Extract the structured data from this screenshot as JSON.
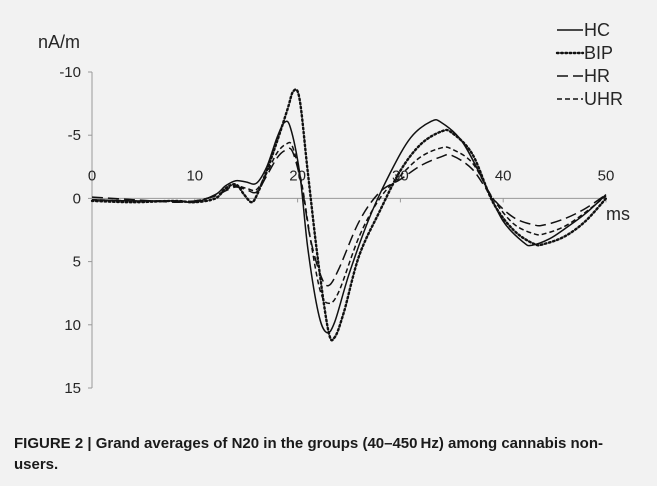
{
  "chart_data": {
    "type": "line",
    "y_unit_label": "nA/m",
    "x_unit_label": "ms",
    "xlim": [
      0,
      50
    ],
    "ylim": [
      15,
      -10
    ],
    "x_ticks": [
      "0",
      "10",
      "20",
      "30",
      "40",
      "50"
    ],
    "y_ticks": [
      "-10",
      "-5",
      "0",
      "5",
      "10",
      "15"
    ],
    "grid": false,
    "legend_position": "top-right",
    "series": [
      {
        "name": "HC",
        "style": "solid",
        "points": [
          [
            0,
            0.1
          ],
          [
            4,
            0.2
          ],
          [
            8,
            0.2
          ],
          [
            10,
            0.3
          ],
          [
            12,
            -0.3
          ],
          [
            13,
            -1.0
          ],
          [
            14,
            -1.4
          ],
          [
            15,
            -1.3
          ],
          [
            16,
            -1.2
          ],
          [
            17,
            -2.5
          ],
          [
            18,
            -4.8
          ],
          [
            18.7,
            -6.0
          ],
          [
            19.3,
            -5.6
          ],
          [
            20.2,
            -2.0
          ],
          [
            21,
            4.0
          ],
          [
            22,
            9.0
          ],
          [
            22.8,
            10.6
          ],
          [
            23.6,
            9.8
          ],
          [
            25,
            6.0
          ],
          [
            27,
            1.5
          ],
          [
            29,
            -2.0
          ],
          [
            31,
            -4.8
          ],
          [
            33,
            -6.1
          ],
          [
            34,
            -6.0
          ],
          [
            36,
            -4.5
          ],
          [
            38,
            -1.5
          ],
          [
            40,
            1.8
          ],
          [
            42,
            3.5
          ],
          [
            42.8,
            3.7
          ],
          [
            44.5,
            3.2
          ],
          [
            46,
            2.4
          ],
          [
            48,
            1.2
          ],
          [
            50,
            -0.3
          ]
        ]
      },
      {
        "name": "BIP",
        "style": "dotted",
        "points": [
          [
            0,
            0.2
          ],
          [
            4,
            0.3
          ],
          [
            8,
            0.2
          ],
          [
            10,
            0.3
          ],
          [
            12,
            0.0
          ],
          [
            13,
            -0.8
          ],
          [
            14,
            -1.1
          ],
          [
            14.8,
            -0.3
          ],
          [
            15.5,
            0.3
          ],
          [
            16,
            -0.2
          ],
          [
            17,
            -2.2
          ],
          [
            18,
            -4.5
          ],
          [
            19,
            -7.0
          ],
          [
            19.6,
            -8.5
          ],
          [
            20.2,
            -7.8
          ],
          [
            21,
            -2.0
          ],
          [
            22,
            5.0
          ],
          [
            23,
            10.5
          ],
          [
            23.6,
            11.0
          ],
          [
            24.5,
            9.0
          ],
          [
            26,
            4.5
          ],
          [
            28,
            1.0
          ],
          [
            30,
            -2.2
          ],
          [
            32,
            -4.3
          ],
          [
            34,
            -5.3
          ],
          [
            35,
            -5.2
          ],
          [
            37,
            -3.5
          ],
          [
            39,
            0.3
          ],
          [
            41,
            2.5
          ],
          [
            43,
            3.6
          ],
          [
            44,
            3.6
          ],
          [
            46,
            3.0
          ],
          [
            48,
            1.8
          ],
          [
            50,
            0.0
          ]
        ]
      },
      {
        "name": "HR",
        "style": "long-dash",
        "points": [
          [
            0,
            -0.1
          ],
          [
            4,
            0.1
          ],
          [
            8,
            0.3
          ],
          [
            10,
            0.2
          ],
          [
            12,
            -0.2
          ],
          [
            13,
            -0.6
          ],
          [
            14,
            -0.9
          ],
          [
            15,
            -0.7
          ],
          [
            16,
            -0.5
          ],
          [
            17,
            -1.8
          ],
          [
            18,
            -3.2
          ],
          [
            18.8,
            -3.8
          ],
          [
            19.5,
            -3.7
          ],
          [
            20.4,
            -1.0
          ],
          [
            21.2,
            3.0
          ],
          [
            22.2,
            6.0
          ],
          [
            23,
            6.9
          ],
          [
            24,
            5.6
          ],
          [
            26,
            1.8
          ],
          [
            28,
            -0.5
          ],
          [
            30,
            -1.5
          ],
          [
            32,
            -2.6
          ],
          [
            34,
            -3.3
          ],
          [
            35,
            -3.4
          ],
          [
            37,
            -2.3
          ],
          [
            39,
            0.0
          ],
          [
            41,
            1.5
          ],
          [
            43,
            2.1
          ],
          [
            44,
            2.1
          ],
          [
            46,
            1.6
          ],
          [
            48,
            0.8
          ],
          [
            50,
            -0.3
          ]
        ]
      },
      {
        "name": "UHR",
        "style": "short-dash",
        "points": [
          [
            0,
            0.1
          ],
          [
            4,
            0.2
          ],
          [
            8,
            0.2
          ],
          [
            10,
            0.2
          ],
          [
            12,
            -0.2
          ],
          [
            13,
            -0.7
          ],
          [
            14,
            -1.0
          ],
          [
            15,
            -0.8
          ],
          [
            16,
            -0.7
          ],
          [
            17,
            -2.0
          ],
          [
            18,
            -3.6
          ],
          [
            18.9,
            -4.3
          ],
          [
            19.5,
            -4.1
          ],
          [
            20.4,
            -1.2
          ],
          [
            21.3,
            3.5
          ],
          [
            22.2,
            7.3
          ],
          [
            23,
            8.3
          ],
          [
            24,
            7.4
          ],
          [
            26,
            3.0
          ],
          [
            28,
            0.0
          ],
          [
            30,
            -1.8
          ],
          [
            32,
            -3.3
          ],
          [
            34,
            -4.0
          ],
          [
            35,
            -3.9
          ],
          [
            37,
            -2.8
          ],
          [
            39,
            0.0
          ],
          [
            41,
            2.0
          ],
          [
            43,
            2.8
          ],
          [
            44,
            2.8
          ],
          [
            46,
            2.2
          ],
          [
            48,
            1.1
          ],
          [
            50,
            -0.2
          ]
        ]
      }
    ]
  },
  "caption": "FIGURE 2 | Grand averages of N20 in the groups (40–450 Hz) among cannabis non-users."
}
